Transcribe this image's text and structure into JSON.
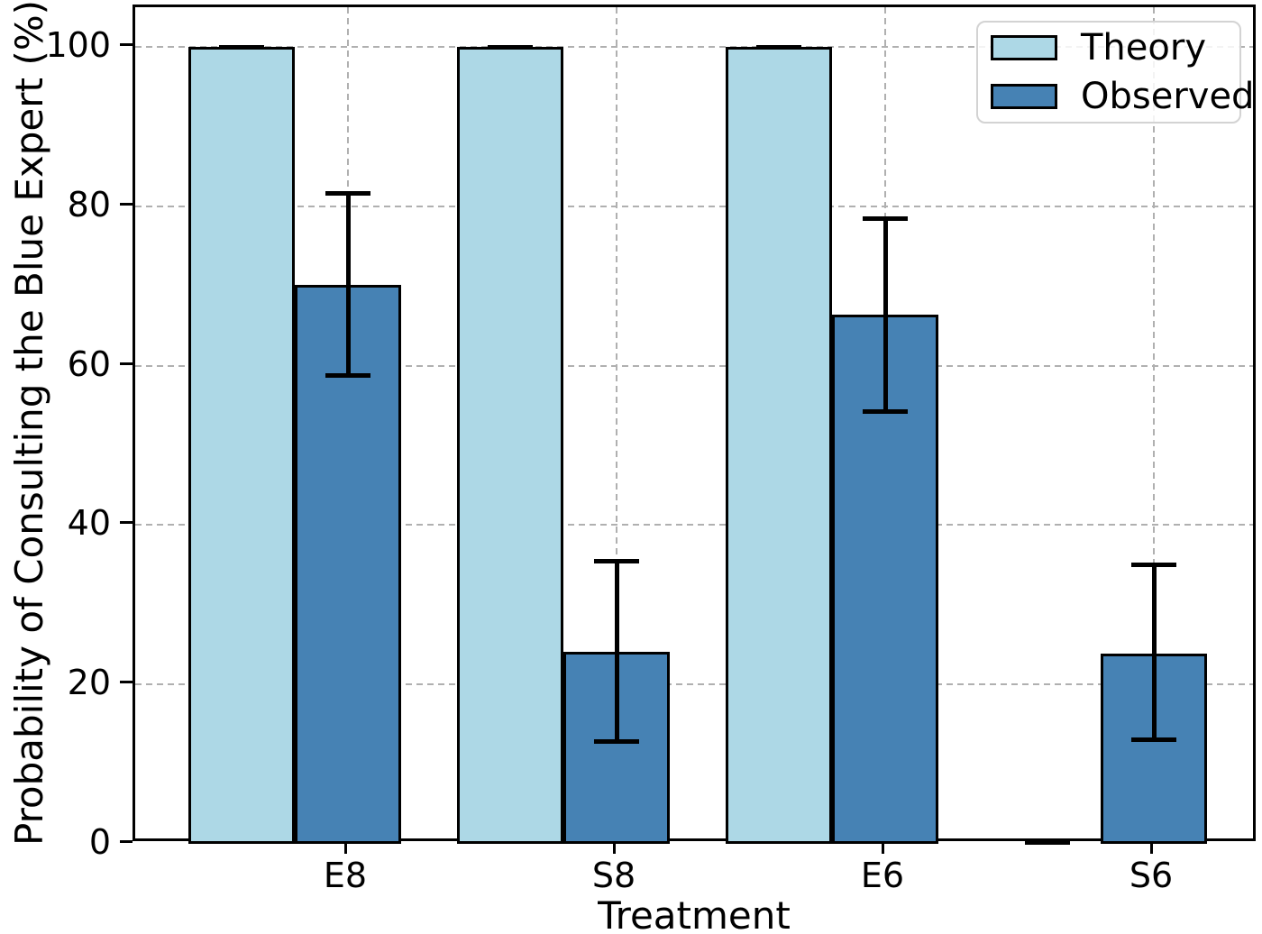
{
  "chart_data": {
    "type": "bar",
    "title": "",
    "xlabel": "Treatment",
    "ylabel": "Probability of Consulting the Blue Expert (%)",
    "categories": [
      "E8",
      "S8",
      "E6",
      "S6"
    ],
    "series": [
      {
        "name": "Theory",
        "color": "#ADD8E6",
        "values": [
          100,
          100,
          100,
          0.2
        ],
        "error_minus": [
          0,
          0,
          0,
          0
        ],
        "error_plus": [
          0,
          0,
          0,
          0
        ]
      },
      {
        "name": "Observed",
        "color": "#4682B4",
        "values": [
          70.2,
          24.1,
          66.4,
          23.9
        ],
        "error_minus": [
          11.4,
          11.3,
          12.1,
          10.8
        ],
        "error_plus": [
          11.4,
          11.4,
          12.1,
          11.1
        ]
      }
    ],
    "ylim": [
      0,
      105
    ],
    "yticks": [
      0,
      20,
      40,
      60,
      80,
      100
    ],
    "ytick_labels": [
      "0",
      "20",
      "40",
      "60",
      "80",
      "100"
    ],
    "grid": true,
    "grid_style": "dashed",
    "grid_color": "#b0b0b0",
    "bar_edge_color": "#000000",
    "error_bar_color": "#000000",
    "legend_position": "upper right",
    "legend_labels": [
      "Theory",
      "Observed"
    ]
  }
}
